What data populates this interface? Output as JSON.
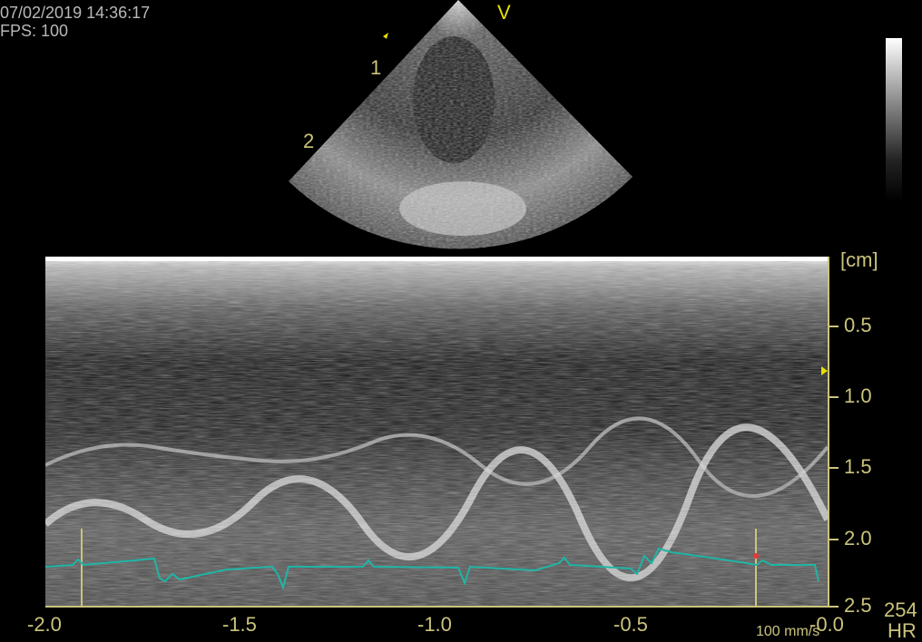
{
  "header": {
    "datetime": "07/02/2019 14:36:17",
    "fps": "FPS: 100"
  },
  "sector": {
    "marker_top": "V",
    "marker_1": "1",
    "marker_2": "2"
  },
  "depth_axis": {
    "unit": "[cm]",
    "ticks": [
      "0.5",
      "1.0",
      "1.5",
      "2.0",
      "2.5"
    ]
  },
  "time_axis": {
    "ticks": [
      "-2.0",
      "-1.5",
      "-1.0",
      "-0.5",
      "-0.0"
    ]
  },
  "sweep_speed": "100 mm/s",
  "heart_rate": {
    "value": "254",
    "label": "HR"
  },
  "colors": {
    "label": "#cbc47c",
    "ecg": "#1fb5a5",
    "text": "#b8b8b8"
  }
}
